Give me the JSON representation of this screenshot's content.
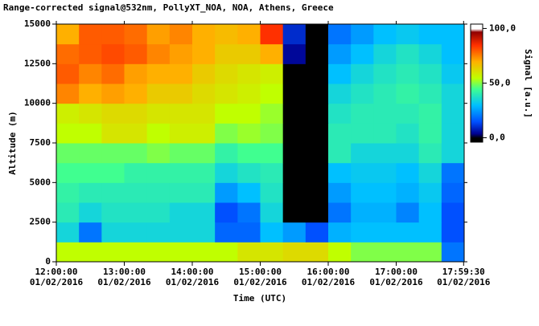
{
  "chart_data": {
    "type": "heatmap",
    "title": "Range-corrected signal@532nm, PollyXT_NOA, NOA, Athens, Greece",
    "x_label": "Time (UTC)",
    "y_label": "Altitude (m)",
    "colorbar_label": "Signal [a.u.]",
    "xlim": [
      12,
      18
    ],
    "xticks": [
      {
        "value": 12,
        "label": "12:00:00\n01/02/2016"
      },
      {
        "value": 13,
        "label": "13:00:00\n01/02/2016"
      },
      {
        "value": 14,
        "label": "14:00:00\n01/02/2016"
      },
      {
        "value": 15,
        "label": "15:00:00\n01/02/2016"
      },
      {
        "value": 16,
        "label": "16:00:00\n01/02/2016"
      },
      {
        "value": 17,
        "label": "17:00:00\n01/02/2016"
      },
      {
        "value": 17.9917,
        "label": "17:59:30\n01/02/2016"
      }
    ],
    "ylim": [
      0,
      15000
    ],
    "yticks": [
      0,
      2500,
      5000,
      7500,
      10000,
      12500,
      15000
    ],
    "clim": [
      -4,
      104
    ],
    "cticks": [
      {
        "value": 0,
        "label": "0,0"
      },
      {
        "value": 50,
        "label": "50,0"
      },
      {
        "value": 100,
        "label": "100,0"
      }
    ],
    "colorscale": [
      [
        0,
        "#000000"
      ],
      [
        4,
        "#00008f"
      ],
      [
        15,
        "#0050ff"
      ],
      [
        30,
        "#00c0ff"
      ],
      [
        45,
        "#40ff90"
      ],
      [
        55,
        "#c0ff00"
      ],
      [
        70,
        "#ffb000"
      ],
      [
        85,
        "#ff3000"
      ],
      [
        97,
        "#900000"
      ],
      [
        100,
        "#ffffff"
      ]
    ],
    "z": [
      [
        55,
        55,
        55,
        55,
        55,
        55,
        55,
        55,
        60,
        60,
        62,
        62,
        55,
        50,
        50,
        50,
        50,
        20
      ],
      [
        35,
        20,
        35,
        35,
        35,
        35,
        35,
        18,
        18,
        30,
        25,
        15,
        28,
        30,
        30,
        30,
        30,
        15
      ],
      [
        40,
        35,
        38,
        38,
        38,
        35,
        35,
        15,
        20,
        35,
        0,
        0,
        20,
        28,
        28,
        22,
        30,
        15
      ],
      [
        42,
        40,
        40,
        40,
        40,
        40,
        40,
        25,
        30,
        38,
        0,
        0,
        25,
        30,
        30,
        28,
        32,
        18
      ],
      [
        45,
        45,
        45,
        42,
        42,
        42,
        42,
        35,
        38,
        40,
        0,
        0,
        30,
        32,
        32,
        30,
        35,
        20
      ],
      [
        48,
        48,
        48,
        48,
        50,
        48,
        48,
        42,
        45,
        45,
        0,
        0,
        40,
        35,
        35,
        35,
        40,
        35
      ],
      [
        55,
        55,
        60,
        60,
        55,
        58,
        58,
        50,
        52,
        50,
        0,
        0,
        40,
        40,
        40,
        38,
        42,
        35
      ],
      [
        58,
        60,
        62,
        62,
        60,
        60,
        60,
        55,
        55,
        52,
        0,
        0,
        38,
        40,
        40,
        40,
        42,
        35
      ],
      [
        75,
        70,
        72,
        70,
        65,
        65,
        62,
        60,
        58,
        55,
        0,
        0,
        35,
        38,
        40,
        42,
        40,
        35
      ],
      [
        80,
        75,
        78,
        72,
        70,
        70,
        65,
        62,
        60,
        58,
        0,
        0,
        30,
        35,
        38,
        40,
        38,
        32
      ],
      [
        78,
        80,
        82,
        80,
        75,
        72,
        70,
        65,
        65,
        70,
        5,
        0,
        25,
        30,
        35,
        38,
        35,
        30
      ],
      [
        70,
        80,
        80,
        78,
        72,
        75,
        70,
        68,
        70,
        85,
        10,
        0,
        20,
        25,
        30,
        32,
        30,
        30
      ]
    ]
  }
}
